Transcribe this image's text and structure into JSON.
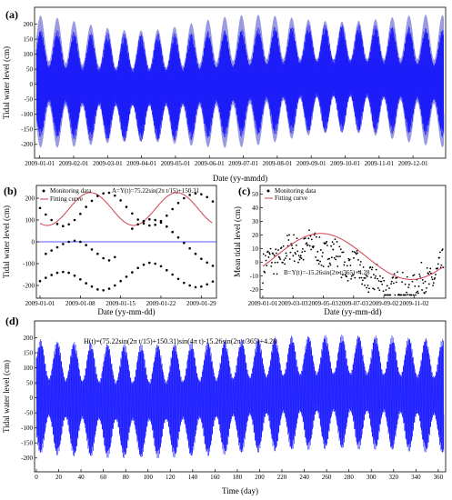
{
  "chart_data": [
    {
      "panel": "(a)",
      "type": "line",
      "xlabel": "Date (yy-mmdd)",
      "ylabel": "Tidal water level (cm)",
      "x_ticks": [
        "2009-01-01",
        "2009-02-01",
        "2009-03-01",
        "2009-04-01",
        "2009-05-01",
        "2009-06-01",
        "2009-07-01",
        "2009-08-01",
        "2009-09-01",
        "2009-10-01",
        "2009-11-01",
        "2009-12-01"
      ],
      "y_ticks": [
        -200,
        -150,
        -100,
        -50,
        0,
        50,
        100,
        150,
        200
      ],
      "ylim": [
        -240,
        250
      ],
      "x_day_range": [
        0,
        365
      ],
      "colors": {
        "series": "#1c1cff",
        "envelope_dark": "#2a2a8c",
        "envelope_light": "#8f8fe0"
      }
    },
    {
      "panel": "(b)",
      "type": "scatter",
      "xlabel": "Date (yy-mm-dd)",
      "ylabel": "Tidal water level (cm)",
      "x_ticks": [
        "2009-01-01",
        "2009-01-08",
        "2009-01-15",
        "2009-01-22",
        "2009-01-29"
      ],
      "y_ticks": [
        -200,
        -100,
        0,
        100,
        200
      ],
      "ylim": [
        -250,
        250
      ],
      "x_day_range": [
        0,
        30
      ],
      "legend": [
        "Monitoring data",
        "Fitting curve"
      ],
      "annotation": "A=Y(t)=75.22sin(2π t/15)+150.31",
      "fit": {
        "amplitude": 75.22,
        "period_days": 15,
        "offset": 150.31
      },
      "upper_points": [
        {
          "x": 0,
          "y": 155
        },
        {
          "x": 1,
          "y": 125
        },
        {
          "x": 2,
          "y": 100
        },
        {
          "x": 3,
          "y": 82
        },
        {
          "x": 4,
          "y": 72
        },
        {
          "x": 5,
          "y": 80
        },
        {
          "x": 6,
          "y": 100
        },
        {
          "x": 7,
          "y": 128
        },
        {
          "x": 8,
          "y": 160
        },
        {
          "x": 9,
          "y": 188
        },
        {
          "x": 10,
          "y": 210
        },
        {
          "x": 11,
          "y": 222
        },
        {
          "x": 12,
          "y": 225
        },
        {
          "x": 13,
          "y": 212
        },
        {
          "x": 14,
          "y": 190
        },
        {
          "x": 15,
          "y": 160
        },
        {
          "x": 16,
          "y": 130
        },
        {
          "x": 17,
          "y": 102
        },
        {
          "x": 18,
          "y": 84
        },
        {
          "x": 19,
          "y": 75
        },
        {
          "x": 20,
          "y": 78
        },
        {
          "x": 21,
          "y": 95
        },
        {
          "x": 22,
          "y": 120
        },
        {
          "x": 23,
          "y": 150
        },
        {
          "x": 24,
          "y": 178
        },
        {
          "x": 25,
          "y": 200
        },
        {
          "x": 26,
          "y": 215
        },
        {
          "x": 27,
          "y": 222
        },
        {
          "x": 28,
          "y": 218
        },
        {
          "x": 29,
          "y": 205
        },
        {
          "x": 30,
          "y": 185
        }
      ],
      "lower_points": [
        {
          "x": 0,
          "y": -180
        },
        {
          "x": 1,
          "y": -165
        },
        {
          "x": 2,
          "y": -152
        },
        {
          "x": 3,
          "y": -142
        },
        {
          "x": 4,
          "y": -138
        },
        {
          "x": 5,
          "y": -142
        },
        {
          "x": 6,
          "y": -155
        },
        {
          "x": 7,
          "y": -172
        },
        {
          "x": 8,
          "y": -190
        },
        {
          "x": 9,
          "y": -205
        },
        {
          "x": 10,
          "y": -218
        },
        {
          "x": 11,
          "y": -222
        },
        {
          "x": 12,
          "y": -215
        },
        {
          "x": 13,
          "y": -200
        },
        {
          "x": 14,
          "y": -180
        },
        {
          "x": 15,
          "y": -160
        },
        {
          "x": 16,
          "y": -140
        },
        {
          "x": 17,
          "y": -120
        },
        {
          "x": 18,
          "y": -105
        },
        {
          "x": 19,
          "y": -96
        },
        {
          "x": 20,
          "y": -100
        },
        {
          "x": 21,
          "y": -112
        },
        {
          "x": 22,
          "y": -130
        },
        {
          "x": 23,
          "y": -150
        },
        {
          "x": 24,
          "y": -170
        },
        {
          "x": 25,
          "y": -188
        },
        {
          "x": 26,
          "y": -200
        },
        {
          "x": 27,
          "y": -208
        },
        {
          "x": 28,
          "y": -205
        },
        {
          "x": 29,
          "y": -195
        },
        {
          "x": 30,
          "y": -182
        }
      ],
      "middle_points": [
        {
          "x": 1,
          "y": -55
        },
        {
          "x": 2,
          "y": -40
        },
        {
          "x": 3,
          "y": -25
        },
        {
          "x": 4,
          "y": -10
        },
        {
          "x": 5,
          "y": 0
        },
        {
          "x": 6,
          "y": 5
        },
        {
          "x": 7,
          "y": 0
        },
        {
          "x": 8,
          "y": -15
        },
        {
          "x": 9,
          "y": -35
        },
        {
          "x": 10,
          "y": -55
        },
        {
          "x": 11,
          "y": -75
        },
        {
          "x": 12,
          "y": -85
        },
        {
          "x": 13,
          "y": -70
        },
        {
          "x": 16,
          "y": 60
        },
        {
          "x": 17,
          "y": 80
        },
        {
          "x": 18,
          "y": 95
        },
        {
          "x": 19,
          "y": 103
        },
        {
          "x": 20,
          "y": 100
        },
        {
          "x": 21,
          "y": 88
        },
        {
          "x": 22,
          "y": 70
        },
        {
          "x": 23,
          "y": 45
        },
        {
          "x": 24,
          "y": 20
        },
        {
          "x": 25,
          "y": -5
        },
        {
          "x": 26,
          "y": -30
        },
        {
          "x": 27,
          "y": -55
        },
        {
          "x": 28,
          "y": -78
        },
        {
          "x": 29,
          "y": -95
        },
        {
          "x": 30,
          "y": -110
        }
      ]
    },
    {
      "panel": "(c)",
      "type": "scatter",
      "xlabel": "Date (yy-mm-dd)",
      "ylabel": "Mean tidal level (cm)",
      "x_ticks": [
        "2009-01-01",
        "2009-03-03",
        "2009-05-03",
        "2009-07-03",
        "2009-09-02",
        "2009-11-02"
      ],
      "y_ticks": [
        -20,
        -10,
        0,
        10,
        20,
        30,
        40,
        50
      ],
      "ylim": [
        -25,
        55
      ],
      "x_day_range": [
        0,
        365
      ],
      "legend": [
        "Monitoring data",
        "Fitting curve"
      ],
      "annotation": "B=Y(t)=-15.26sin(2π t/365)+4.28",
      "fit": {
        "amplitude": -15.26,
        "period_days": 365,
        "offset": 4.28
      }
    },
    {
      "panel": "(d)",
      "type": "line",
      "xlabel": "Time (day)",
      "ylabel": "Tidal water level (cm)",
      "x_ticks": [
        0,
        20,
        40,
        60,
        80,
        100,
        120,
        140,
        160,
        180,
        200,
        220,
        240,
        260,
        280,
        300,
        320,
        340,
        360
      ],
      "y_ticks": [
        -200,
        -150,
        -100,
        -50,
        0,
        50,
        100,
        150,
        200
      ],
      "ylim": [
        -240,
        250
      ],
      "x_day_range": [
        0,
        365
      ],
      "annotation": "H(t)=(75.22sin(2π t/15)+150.31)sin(4π t)-15.26sin(2π t/365)+4.28",
      "colors": {
        "series": "#1c1cff"
      }
    }
  ]
}
